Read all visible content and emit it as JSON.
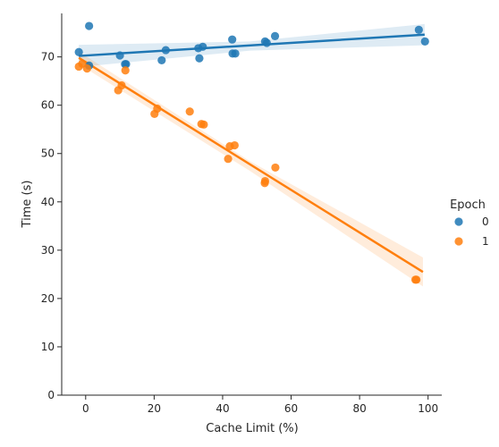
{
  "chart_data": {
    "type": "scatter",
    "title": "",
    "xlabel": "Cache Limit (%)",
    "ylabel": "Time (s)",
    "xlim": [
      -7,
      104
    ],
    "ylim": [
      0,
      79
    ],
    "xticks": [
      0,
      20,
      40,
      60,
      80,
      100
    ],
    "yticks": [
      0,
      10,
      20,
      30,
      40,
      50,
      60,
      70
    ],
    "grid": false,
    "legend": {
      "title": "Epoch",
      "placement": "right"
    },
    "series": [
      {
        "name": "0",
        "color": "#1f77b4",
        "fit_line": {
          "x": [
            -2,
            99
          ],
          "y": [
            70.2,
            74.6
          ]
        },
        "ci_band": {
          "x": [
            -2,
            48,
            99
          ],
          "upper": [
            72.5,
            73.2,
            76.8
          ],
          "lower": [
            67.9,
            71.3,
            72.4
          ]
        },
        "points": [
          [
            -2,
            71.0
          ],
          [
            1,
            76.4
          ],
          [
            1,
            68.2
          ],
          [
            10,
            70.3
          ],
          [
            11.5,
            68.5
          ],
          [
            11.8,
            68.5
          ],
          [
            22.2,
            69.3
          ],
          [
            23.4,
            71.4
          ],
          [
            32.9,
            71.8
          ],
          [
            33.2,
            69.7
          ],
          [
            34.2,
            72.1
          ],
          [
            42.8,
            73.6
          ],
          [
            42.9,
            70.7
          ],
          [
            43.7,
            70.7
          ],
          [
            52.4,
            73.2
          ],
          [
            52.9,
            72.9
          ],
          [
            55.3,
            74.3
          ],
          [
            97.3,
            75.6
          ],
          [
            99.1,
            73.2
          ]
        ]
      },
      {
        "name": "1",
        "color": "#ff7f0e",
        "fit_line": {
          "x": [
            -2,
            98.5
          ],
          "y": [
            69.8,
            25.5
          ]
        },
        "ci_band": {
          "x": [
            -2,
            48,
            98.5
          ],
          "upper": [
            71.1,
            48.4,
            28.5
          ],
          "lower": [
            68.5,
            46.4,
            22.5
          ]
        },
        "points": [
          [
            -2,
            68.0
          ],
          [
            -1,
            68.6
          ],
          [
            0.4,
            67.6
          ],
          [
            9.5,
            63.1
          ],
          [
            10.5,
            64.1
          ],
          [
            11.6,
            67.2
          ],
          [
            20.1,
            58.2
          ],
          [
            20.9,
            59.3
          ],
          [
            30.4,
            58.7
          ],
          [
            33.8,
            56.1
          ],
          [
            34.5,
            56.0
          ],
          [
            41.6,
            48.9
          ],
          [
            42.1,
            51.5
          ],
          [
            43.5,
            51.7
          ],
          [
            52.3,
            43.9
          ],
          [
            52.4,
            44.3
          ],
          [
            55.4,
            47.1
          ],
          [
            96.3,
            23.9
          ],
          [
            96.6,
            23.9
          ]
        ]
      }
    ]
  }
}
